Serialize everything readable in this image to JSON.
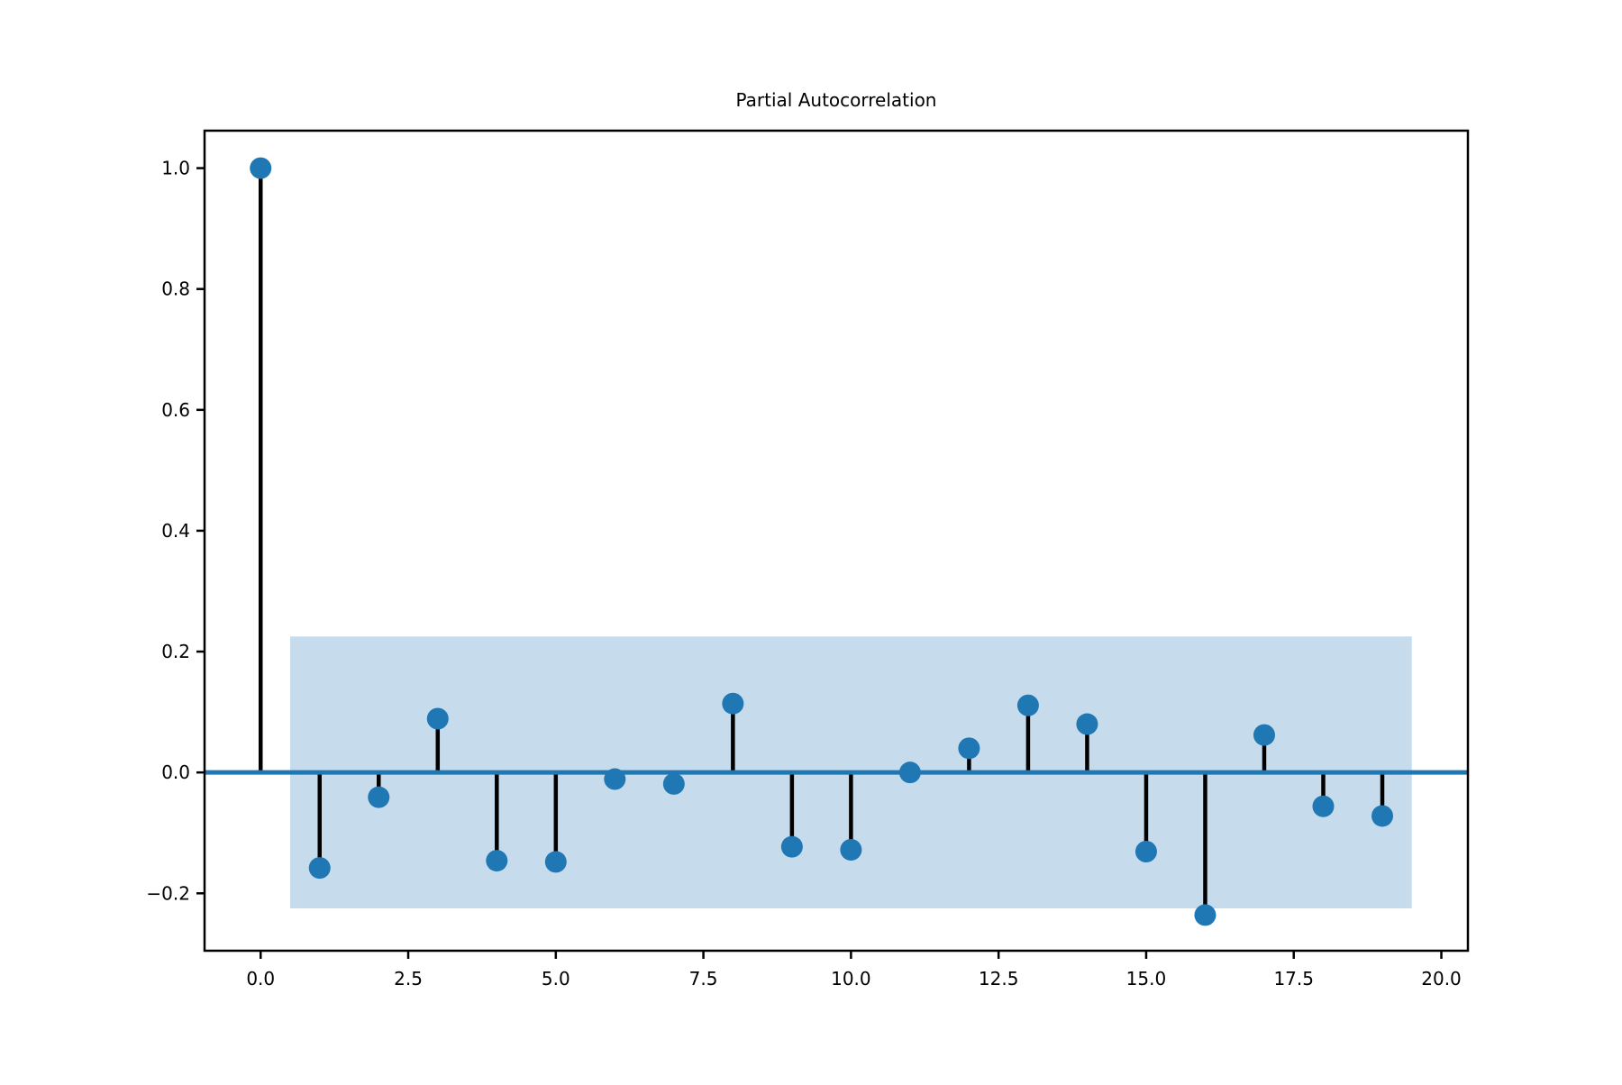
{
  "chart_data": {
    "type": "stem",
    "title": "Partial Autocorrelation",
    "xlabel": "",
    "ylabel": "",
    "xlim": [
      -0.95,
      20.45
    ],
    "ylim": [
      -0.295,
      1.062
    ],
    "x_ticks": [
      0.0,
      2.5,
      5.0,
      7.5,
      10.0,
      12.5,
      15.0,
      17.5,
      20.0
    ],
    "x_tick_labels": [
      "0.0",
      "2.5",
      "5.0",
      "7.5",
      "10.0",
      "12.5",
      "15.0",
      "17.5",
      "20.0"
    ],
    "y_ticks": [
      -0.2,
      0.0,
      0.2,
      0.4,
      0.6,
      0.8,
      1.0
    ],
    "y_tick_labels": [
      "−0.2",
      "0.0",
      "0.2",
      "0.4",
      "0.6",
      "0.8",
      "1.0"
    ],
    "grid": false,
    "legend": null,
    "x": [
      0,
      1,
      2,
      3,
      4,
      5,
      6,
      7,
      8,
      9,
      10,
      11,
      12,
      13,
      14,
      15,
      16,
      17,
      18,
      19
    ],
    "values": [
      1.0,
      -0.158,
      -0.041,
      0.089,
      -0.146,
      -0.148,
      -0.011,
      -0.019,
      0.114,
      -0.123,
      -0.128,
      0.0,
      0.04,
      0.111,
      0.08,
      -0.131,
      -0.236,
      0.062,
      -0.056,
      -0.072
    ],
    "confidence_band": {
      "x_range": [
        0.5,
        19.5
      ],
      "upper": 0.225,
      "lower": -0.225
    },
    "colors": {
      "marker": "#1f77b4",
      "stem": "#000000",
      "baseline": "#1f77b4",
      "band": "#c6dbec"
    }
  }
}
